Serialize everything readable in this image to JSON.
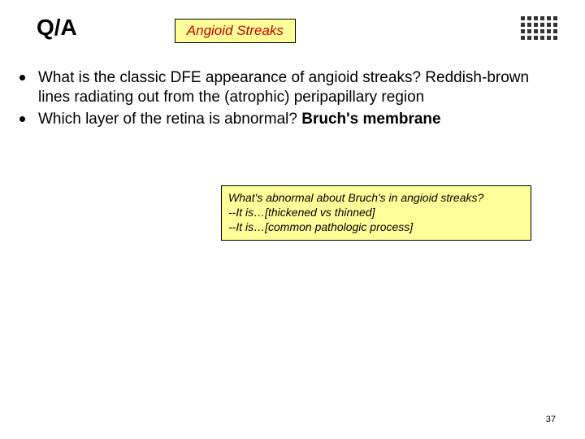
{
  "header": {
    "qa": "Q/A",
    "topic": "Angioid Streaks"
  },
  "bullets": [
    {
      "plain": "What is the classic DFE appearance of angioid streaks? Reddish-brown lines radiating out from the (atrophic) peripapillary region"
    },
    {
      "question": "Which layer of the retina is abnormal? ",
      "answer": "Bruch's membrane"
    }
  ],
  "callout": {
    "line1": "What's abnormal about Bruch's in angioid streaks?",
    "line2": "--It is…[thickened vs thinned]",
    "line3": "--It is…[common pathologic process]"
  },
  "page_number": "37",
  "colors": {
    "callout_bg": "#ffff99",
    "callout_title_text": "#c00000",
    "background": "#ffffff"
  },
  "typography": {
    "title_fontsize_pt": 21,
    "body_fontsize_pt": 14,
    "callout_fontsize_pt": 10
  }
}
